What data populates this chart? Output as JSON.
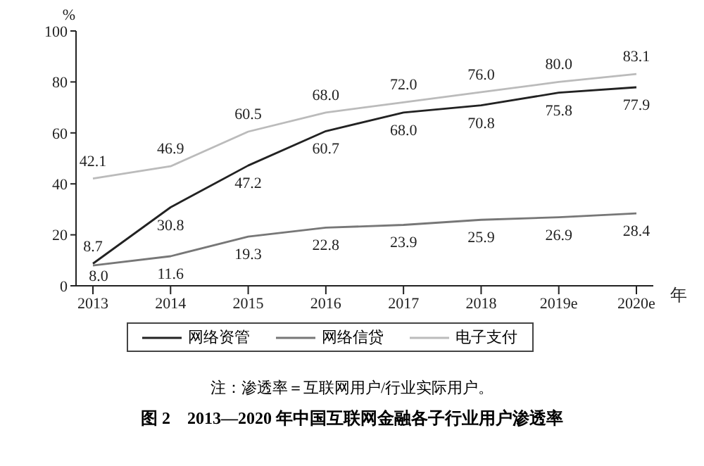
{
  "chart_data": {
    "type": "line",
    "title": "图 2　2013—2020 年中国互联网金融各子行业用户渗透率",
    "xlabel": "年",
    "ylabel": "%",
    "categories": [
      "2013",
      "2014",
      "2015",
      "2016",
      "2017",
      "2018",
      "2019e",
      "2020e"
    ],
    "series": [
      {
        "name": "网络资管",
        "color": "#222222",
        "values": [
          8.7,
          30.8,
          47.2,
          60.7,
          68.0,
          70.8,
          75.8,
          77.9
        ],
        "value_labels": [
          "8.7",
          "30.8",
          "47.2",
          "60.7",
          "68.0",
          "70.8",
          "75.8",
          "77.9"
        ]
      },
      {
        "name": "网络信贷",
        "color": "#777777",
        "values": [
          8.0,
          11.6,
          19.3,
          22.8,
          23.9,
          25.9,
          26.9,
          28.4
        ],
        "value_labels": [
          "8.0",
          "11.6",
          "19.3",
          "22.8",
          "23.9",
          "25.9",
          "26.9",
          "28.4"
        ]
      },
      {
        "name": "电子支付",
        "color": "#bbbbbb",
        "values": [
          42.1,
          46.9,
          60.5,
          68.0,
          72.0,
          76.0,
          80.0,
          83.1
        ],
        "value_labels": [
          "42.1",
          "46.9",
          "60.5",
          "68.0",
          "72.0",
          "76.0",
          "80.0",
          "83.1"
        ]
      }
    ],
    "ylim": [
      0,
      100
    ],
    "yticks": [
      0,
      20,
      40,
      60,
      80,
      100
    ],
    "legend": "bottom",
    "marker": "none",
    "line_style": "solid",
    "annotations": [
      "注：渗透率＝互联网用户/行业实际用户。"
    ]
  }
}
